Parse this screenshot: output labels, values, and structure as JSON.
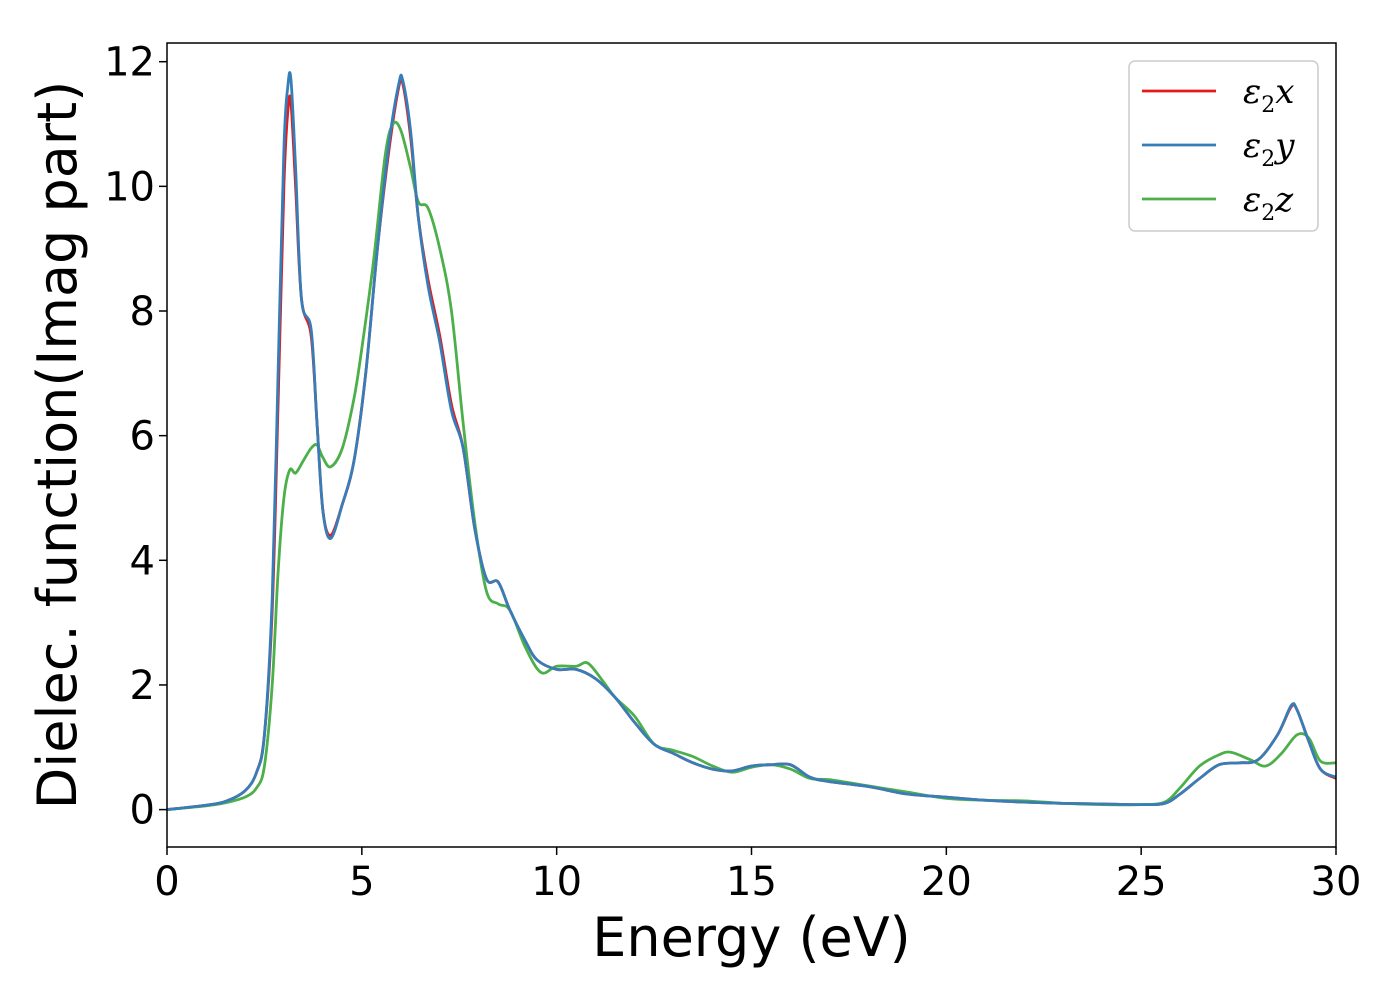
{
  "chart_data": {
    "type": "line",
    "title": "",
    "xlabel": "Energy (eV)",
    "ylabel": "Dielec. function(Imag part)",
    "xlim": [
      0,
      30
    ],
    "ylim": [
      -0.6,
      12.3
    ],
    "xticks": [
      0,
      5,
      10,
      15,
      20,
      25,
      30
    ],
    "yticks": [
      0,
      2,
      4,
      6,
      8,
      10,
      12
    ],
    "grid": false,
    "legend_position": "top-right",
    "series": [
      {
        "name": "ε2x",
        "sym": "ε",
        "sub": "2",
        "axis": "x",
        "color": "#e41a1c",
        "points": [
          [
            0,
            0
          ],
          [
            1,
            0.07
          ],
          [
            1.5,
            0.13
          ],
          [
            2,
            0.3
          ],
          [
            2.3,
            0.6
          ],
          [
            2.5,
            1.2
          ],
          [
            2.7,
            3.2
          ],
          [
            2.85,
            6.5
          ],
          [
            3.0,
            10.0
          ],
          [
            3.1,
            11.2
          ],
          [
            3.18,
            11.35
          ],
          [
            3.3,
            10.0
          ],
          [
            3.45,
            8.2
          ],
          [
            3.7,
            7.6
          ],
          [
            3.85,
            6.2
          ],
          [
            4.0,
            4.8
          ],
          [
            4.2,
            4.4
          ],
          [
            4.5,
            4.9
          ],
          [
            4.8,
            5.6
          ],
          [
            5.1,
            7.0
          ],
          [
            5.4,
            9.0
          ],
          [
            5.7,
            10.6
          ],
          [
            5.95,
            11.6
          ],
          [
            6.05,
            11.65
          ],
          [
            6.25,
            10.8
          ],
          [
            6.45,
            9.5
          ],
          [
            6.7,
            8.5
          ],
          [
            7.0,
            7.6
          ],
          [
            7.3,
            6.5
          ],
          [
            7.6,
            5.8
          ],
          [
            7.9,
            4.5
          ],
          [
            8.2,
            3.7
          ],
          [
            8.5,
            3.65
          ],
          [
            8.8,
            3.2
          ],
          [
            9.2,
            2.7
          ],
          [
            9.5,
            2.4
          ],
          [
            10.0,
            2.25
          ],
          [
            10.5,
            2.25
          ],
          [
            11.0,
            2.1
          ],
          [
            11.5,
            1.8
          ],
          [
            12.0,
            1.4
          ],
          [
            12.5,
            1.05
          ],
          [
            13.0,
            0.9
          ],
          [
            13.5,
            0.75
          ],
          [
            14.0,
            0.65
          ],
          [
            14.5,
            0.62
          ],
          [
            15.0,
            0.7
          ],
          [
            15.5,
            0.72
          ],
          [
            16.0,
            0.72
          ],
          [
            16.5,
            0.52
          ],
          [
            17.0,
            0.45
          ],
          [
            18.0,
            0.37
          ],
          [
            19.0,
            0.25
          ],
          [
            20.0,
            0.2
          ],
          [
            21.0,
            0.15
          ],
          [
            22.0,
            0.12
          ],
          [
            23.0,
            0.1
          ],
          [
            24.0,
            0.09
          ],
          [
            25.0,
            0.08
          ],
          [
            25.6,
            0.1
          ],
          [
            26.0,
            0.25
          ],
          [
            26.5,
            0.5
          ],
          [
            27.0,
            0.72
          ],
          [
            27.5,
            0.75
          ],
          [
            28.0,
            0.8
          ],
          [
            28.5,
            1.2
          ],
          [
            28.85,
            1.65
          ],
          [
            29.0,
            1.6
          ],
          [
            29.3,
            1.1
          ],
          [
            29.6,
            0.65
          ],
          [
            30.0,
            0.5
          ]
        ]
      },
      {
        "name": "ε2y",
        "sym": "ε",
        "sub": "2",
        "axis": "y",
        "color": "#377eb8",
        "points": [
          [
            0,
            0
          ],
          [
            1,
            0.07
          ],
          [
            1.5,
            0.13
          ],
          [
            2,
            0.3
          ],
          [
            2.3,
            0.6
          ],
          [
            2.5,
            1.2
          ],
          [
            2.7,
            3.4
          ],
          [
            2.85,
            7.0
          ],
          [
            3.0,
            10.6
          ],
          [
            3.1,
            11.6
          ],
          [
            3.18,
            11.72
          ],
          [
            3.3,
            10.3
          ],
          [
            3.45,
            8.2
          ],
          [
            3.7,
            7.7
          ],
          [
            3.85,
            6.2
          ],
          [
            4.0,
            4.8
          ],
          [
            4.2,
            4.35
          ],
          [
            4.5,
            4.9
          ],
          [
            4.8,
            5.6
          ],
          [
            5.1,
            7.0
          ],
          [
            5.4,
            9.0
          ],
          [
            5.7,
            10.7
          ],
          [
            5.95,
            11.65
          ],
          [
            6.05,
            11.7
          ],
          [
            6.25,
            10.9
          ],
          [
            6.45,
            9.5
          ],
          [
            6.7,
            8.4
          ],
          [
            7.0,
            7.5
          ],
          [
            7.3,
            6.4
          ],
          [
            7.6,
            5.8
          ],
          [
            7.9,
            4.5
          ],
          [
            8.2,
            3.7
          ],
          [
            8.5,
            3.65
          ],
          [
            8.8,
            3.2
          ],
          [
            9.2,
            2.7
          ],
          [
            9.5,
            2.4
          ],
          [
            10.0,
            2.25
          ],
          [
            10.5,
            2.25
          ],
          [
            11.0,
            2.1
          ],
          [
            11.5,
            1.8
          ],
          [
            12.0,
            1.4
          ],
          [
            12.5,
            1.05
          ],
          [
            13.0,
            0.9
          ],
          [
            13.5,
            0.75
          ],
          [
            14.0,
            0.65
          ],
          [
            14.5,
            0.62
          ],
          [
            15.0,
            0.7
          ],
          [
            15.5,
            0.72
          ],
          [
            16.0,
            0.72
          ],
          [
            16.5,
            0.52
          ],
          [
            17.0,
            0.45
          ],
          [
            18.0,
            0.37
          ],
          [
            19.0,
            0.25
          ],
          [
            20.0,
            0.2
          ],
          [
            21.0,
            0.15
          ],
          [
            22.0,
            0.12
          ],
          [
            23.0,
            0.1
          ],
          [
            24.0,
            0.09
          ],
          [
            25.0,
            0.08
          ],
          [
            25.6,
            0.1
          ],
          [
            26.0,
            0.25
          ],
          [
            26.5,
            0.5
          ],
          [
            27.0,
            0.72
          ],
          [
            27.5,
            0.75
          ],
          [
            28.0,
            0.8
          ],
          [
            28.5,
            1.2
          ],
          [
            28.85,
            1.67
          ],
          [
            29.0,
            1.6
          ],
          [
            29.3,
            1.1
          ],
          [
            29.6,
            0.65
          ],
          [
            30.0,
            0.52
          ]
        ]
      },
      {
        "name": "ε2z",
        "sym": "ε",
        "sub": "2",
        "axis": "z",
        "color": "#4daf4a",
        "points": [
          [
            0,
            0
          ],
          [
            1,
            0.06
          ],
          [
            1.5,
            0.11
          ],
          [
            2,
            0.2
          ],
          [
            2.3,
            0.35
          ],
          [
            2.5,
            0.7
          ],
          [
            2.7,
            2.0
          ],
          [
            2.85,
            3.8
          ],
          [
            3.0,
            5.0
          ],
          [
            3.15,
            5.45
          ],
          [
            3.3,
            5.4
          ],
          [
            3.5,
            5.6
          ],
          [
            3.7,
            5.8
          ],
          [
            3.85,
            5.85
          ],
          [
            4.0,
            5.65
          ],
          [
            4.2,
            5.5
          ],
          [
            4.5,
            5.8
          ],
          [
            4.8,
            6.6
          ],
          [
            5.0,
            7.4
          ],
          [
            5.3,
            8.8
          ],
          [
            5.6,
            10.5
          ],
          [
            5.8,
            11.0
          ],
          [
            6.0,
            10.9
          ],
          [
            6.25,
            10.3
          ],
          [
            6.45,
            9.75
          ],
          [
            6.7,
            9.65
          ],
          [
            7.0,
            9.0
          ],
          [
            7.3,
            8.0
          ],
          [
            7.6,
            6.2
          ],
          [
            7.9,
            4.6
          ],
          [
            8.2,
            3.5
          ],
          [
            8.5,
            3.3
          ],
          [
            8.8,
            3.2
          ],
          [
            9.2,
            2.6
          ],
          [
            9.6,
            2.2
          ],
          [
            10.0,
            2.3
          ],
          [
            10.5,
            2.3
          ],
          [
            10.8,
            2.35
          ],
          [
            11.2,
            2.05
          ],
          [
            11.5,
            1.8
          ],
          [
            12.0,
            1.5
          ],
          [
            12.5,
            1.05
          ],
          [
            13.0,
            0.95
          ],
          [
            13.5,
            0.85
          ],
          [
            14.0,
            0.7
          ],
          [
            14.5,
            0.6
          ],
          [
            15.0,
            0.68
          ],
          [
            15.5,
            0.72
          ],
          [
            16.0,
            0.65
          ],
          [
            16.5,
            0.5
          ],
          [
            17.0,
            0.48
          ],
          [
            18.0,
            0.38
          ],
          [
            19.0,
            0.28
          ],
          [
            20.0,
            0.18
          ],
          [
            21.0,
            0.15
          ],
          [
            22.0,
            0.14
          ],
          [
            23.0,
            0.1
          ],
          [
            24.0,
            0.08
          ],
          [
            25.0,
            0.08
          ],
          [
            25.6,
            0.12
          ],
          [
            26.0,
            0.35
          ],
          [
            26.5,
            0.7
          ],
          [
            27.0,
            0.88
          ],
          [
            27.3,
            0.92
          ],
          [
            27.8,
            0.8
          ],
          [
            28.2,
            0.7
          ],
          [
            28.6,
            0.9
          ],
          [
            29.0,
            1.2
          ],
          [
            29.3,
            1.15
          ],
          [
            29.6,
            0.78
          ],
          [
            30.0,
            0.75
          ]
        ]
      }
    ]
  }
}
